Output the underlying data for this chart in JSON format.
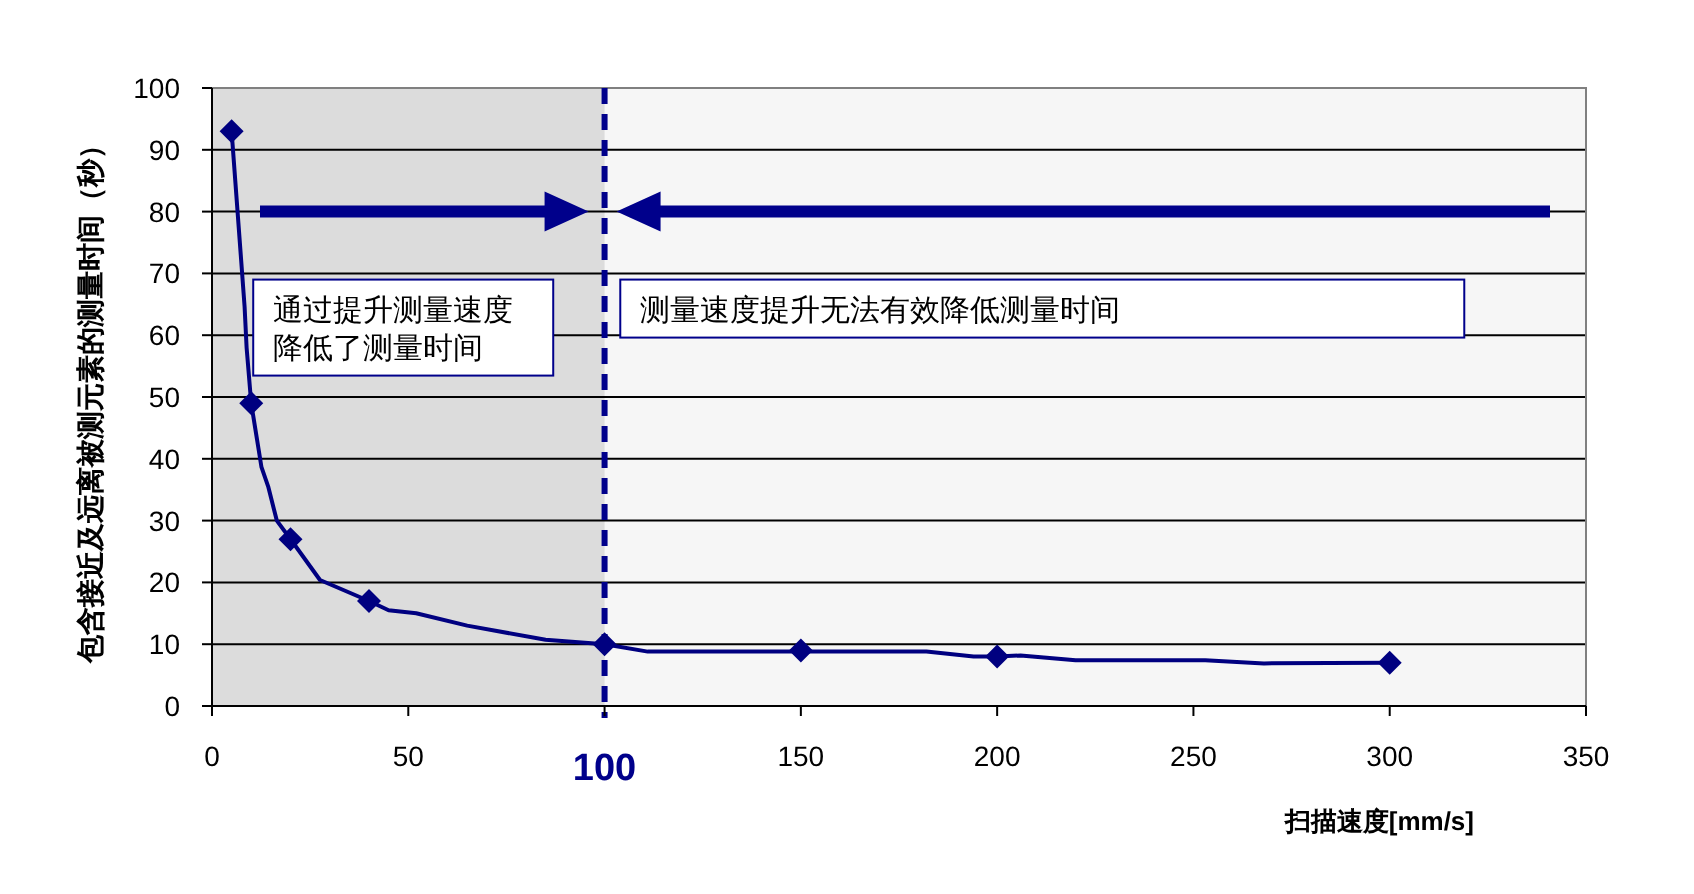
{
  "chart_data": {
    "type": "line",
    "xlabel": "扫描速度[mm/s]",
    "ylabel": "包含接近及远离被测元素的测量时间（秒）",
    "xlim": [
      0,
      350
    ],
    "xticks": [
      0,
      50,
      100,
      150,
      200,
      250,
      300,
      350
    ],
    "ylim": [
      0,
      100
    ],
    "yticks": [
      0,
      10,
      20,
      30,
      40,
      50,
      60,
      70,
      80,
      90,
      100
    ],
    "grid": "y",
    "series": [
      {
        "color": "#000080",
        "marker": "none",
        "x": [
          5,
          8.3,
          8.8,
          10,
          12.6,
          14.3,
          16.5,
          20,
          27.5,
          40,
          45,
          52,
          65,
          85,
          100,
          111,
          150,
          182,
          194,
          200,
          206,
          220,
          253,
          268,
          300
        ],
        "values": [
          93,
          64.6,
          58,
          49,
          38.7,
          35.5,
          30,
          27,
          20.4,
          17,
          15.5,
          15,
          13,
          10.7,
          10,
          8.8,
          8.8,
          8.8,
          8,
          8,
          8.2,
          7.4,
          7.4,
          6.9,
          7
        ]
      },
      {
        "type": "scatter",
        "color": "#000080",
        "marker": "diamond",
        "x": [
          5,
          10,
          20,
          40,
          100,
          150,
          200,
          300
        ],
        "values": [
          93,
          49,
          27,
          17,
          10,
          9,
          8,
          7
        ]
      }
    ],
    "bands": [
      {
        "axis": "x",
        "from": 0,
        "to": 100,
        "color": "#dcdcdc"
      }
    ],
    "ref_lines": [
      {
        "axis": "x",
        "value": 100,
        "color": "#00008b",
        "line_style": "dashed"
      }
    ],
    "annotations": [
      "通过提升测量速度降低了测量时间",
      "测量速度提升无法有效降低测量时间"
    ]
  }
}
